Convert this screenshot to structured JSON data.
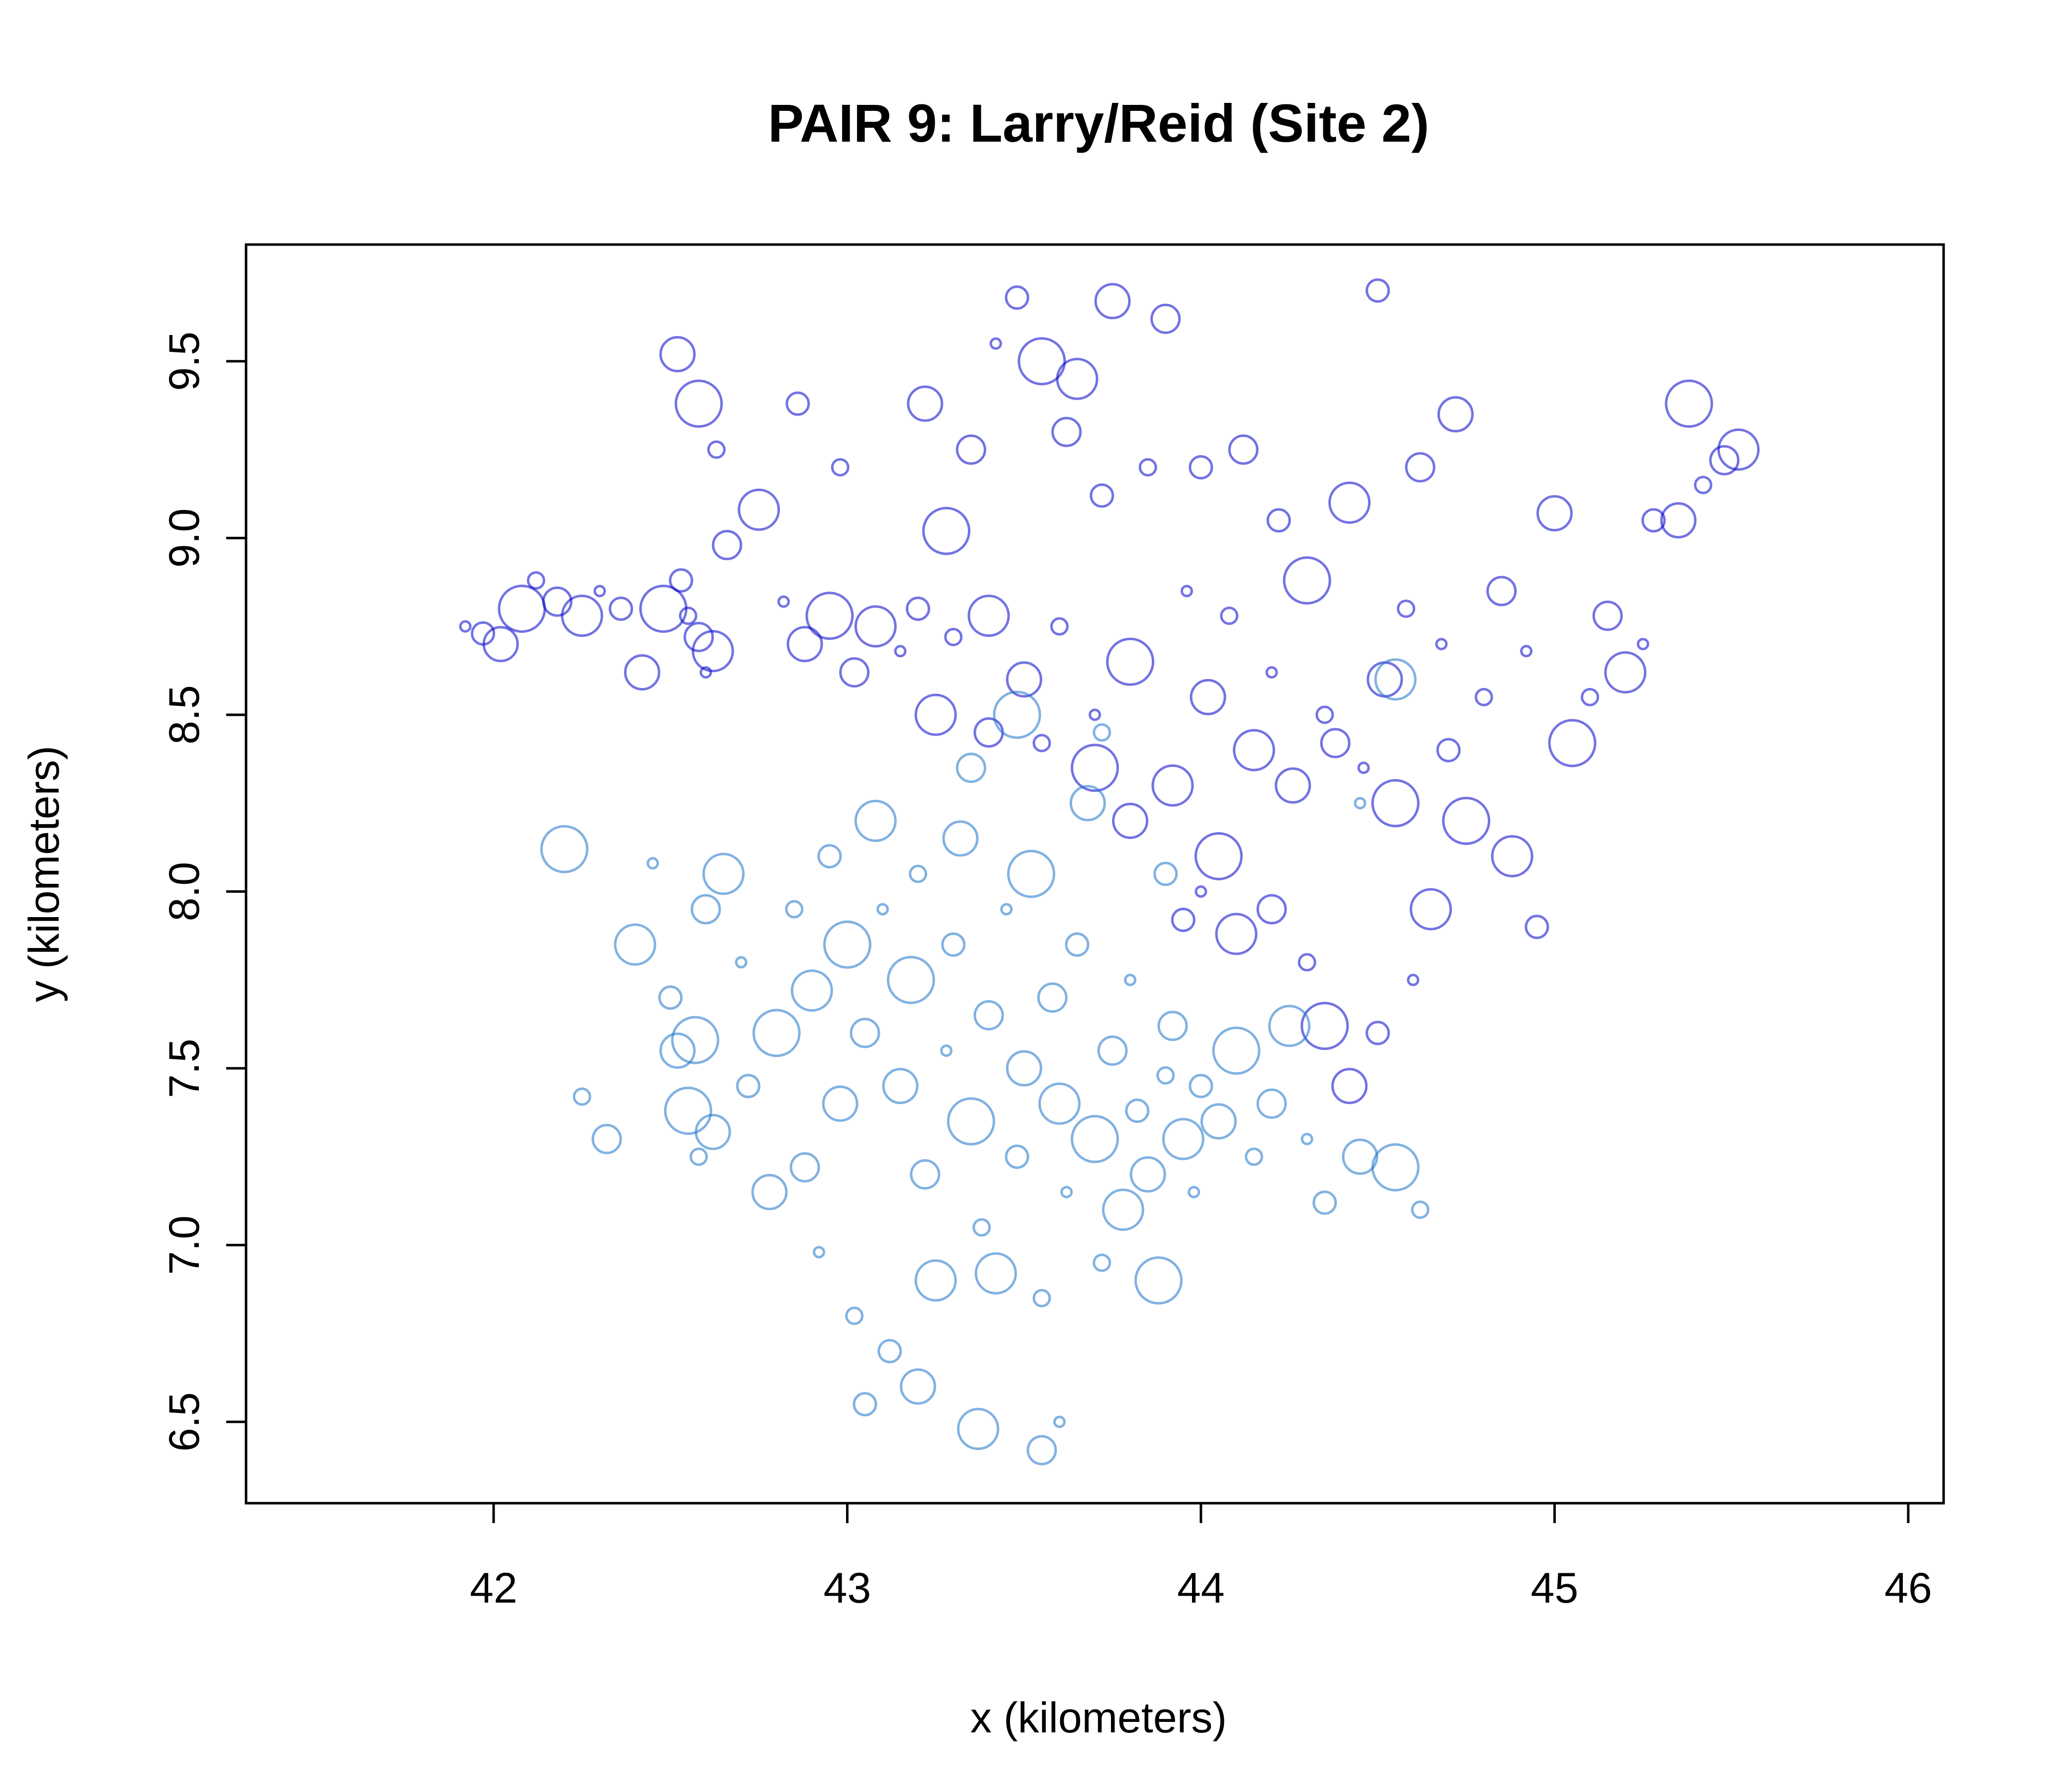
{
  "chart_data": {
    "type": "scatter",
    "title": "PAIR 9: Larry/Reid (Site 2)",
    "xlabel": "x (kilometers)",
    "ylabel": "y (kilometers)",
    "xlim": [
      41.3,
      46.1
    ],
    "ylim": [
      6.27,
      9.83
    ],
    "x_ticks": [
      "42",
      "43",
      "44",
      "45",
      "46"
    ],
    "y_ticks": [
      "6.5",
      "7.0",
      "7.5",
      "8.0",
      "8.5",
      "9.0",
      "9.5"
    ],
    "grid": false,
    "legend": "none",
    "marker": "open circle, size varies, semi-transparent",
    "series": [
      {
        "color": "#0000cc",
        "points": [
          [
            41.92,
            8.75
          ],
          [
            41.97,
            8.73
          ],
          [
            42.02,
            8.7
          ],
          [
            42.08,
            8.8
          ],
          [
            42.12,
            8.88
          ],
          [
            42.18,
            8.82
          ],
          [
            42.25,
            8.78
          ],
          [
            42.3,
            8.85
          ],
          [
            42.36,
            8.8
          ],
          [
            42.42,
            8.62
          ],
          [
            42.48,
            8.8
          ],
          [
            42.55,
            8.78
          ],
          [
            42.58,
            8.72
          ],
          [
            42.62,
            8.68
          ],
          [
            42.6,
            8.62
          ],
          [
            42.53,
            8.88
          ],
          [
            42.52,
            9.52
          ],
          [
            42.58,
            9.38
          ],
          [
            42.63,
            9.25
          ],
          [
            42.66,
            8.98
          ],
          [
            42.75,
            9.08
          ],
          [
            42.82,
            8.82
          ],
          [
            42.86,
            9.38
          ],
          [
            42.88,
            8.7
          ],
          [
            42.95,
            8.78
          ],
          [
            42.98,
            9.2
          ],
          [
            43.02,
            8.62
          ],
          [
            43.08,
            8.75
          ],
          [
            43.15,
            8.68
          ],
          [
            43.2,
            8.8
          ],
          [
            43.22,
            9.38
          ],
          [
            43.28,
            9.02
          ],
          [
            43.3,
            8.72
          ],
          [
            43.35,
            9.25
          ],
          [
            43.4,
            8.78
          ],
          [
            43.42,
            9.55
          ],
          [
            43.48,
            9.68
          ],
          [
            43.5,
            8.6
          ],
          [
            43.55,
            9.5
          ],
          [
            43.6,
            8.75
          ],
          [
            43.62,
            9.3
          ],
          [
            43.65,
            9.45
          ],
          [
            43.7,
            8.5
          ],
          [
            43.72,
            9.12
          ],
          [
            43.75,
            9.67
          ],
          [
            43.8,
            8.65
          ],
          [
            43.85,
            9.2
          ],
          [
            43.9,
            9.62
          ],
          [
            43.92,
            8.3
          ],
          [
            43.96,
            8.85
          ],
          [
            44.0,
            9.2
          ],
          [
            44.02,
            8.55
          ],
          [
            44.05,
            8.1
          ],
          [
            44.08,
            8.78
          ],
          [
            44.12,
            9.25
          ],
          [
            44.15,
            8.4
          ],
          [
            44.2,
            8.62
          ],
          [
            44.22,
            9.05
          ],
          [
            44.26,
            8.3
          ],
          [
            44.3,
            8.88
          ],
          [
            44.35,
            8.5
          ],
          [
            44.38,
            8.42
          ],
          [
            44.42,
            9.1
          ],
          [
            44.46,
            8.35
          ],
          [
            44.5,
            9.7
          ],
          [
            44.52,
            8.6
          ],
          [
            44.55,
            8.25
          ],
          [
            44.58,
            8.8
          ],
          [
            44.62,
            9.2
          ],
          [
            44.65,
            7.95
          ],
          [
            44.68,
            8.7
          ],
          [
            44.7,
            8.4
          ],
          [
            44.72,
            9.35
          ],
          [
            44.75,
            8.2
          ],
          [
            44.8,
            8.55
          ],
          [
            44.85,
            8.85
          ],
          [
            44.88,
            8.1
          ],
          [
            44.92,
            8.68
          ],
          [
            44.95,
            7.9
          ],
          [
            45.0,
            9.07
          ],
          [
            45.05,
            8.42
          ],
          [
            45.1,
            8.55
          ],
          [
            45.15,
            8.78
          ],
          [
            45.2,
            8.62
          ],
          [
            45.25,
            8.7
          ],
          [
            45.28,
            9.05
          ],
          [
            45.35,
            9.05
          ],
          [
            45.38,
            9.38
          ],
          [
            45.42,
            9.15
          ],
          [
            45.48,
            9.22
          ],
          [
            45.52,
            9.25
          ],
          [
            44.6,
            7.75
          ],
          [
            44.5,
            7.6
          ],
          [
            44.42,
            7.45
          ],
          [
            44.35,
            7.62
          ],
          [
            44.3,
            7.8
          ],
          [
            44.2,
            7.95
          ],
          [
            44.1,
            7.88
          ],
          [
            44.0,
            8.0
          ],
          [
            43.95,
            7.92
          ],
          [
            43.8,
            8.2
          ],
          [
            43.7,
            8.35
          ],
          [
            43.55,
            8.42
          ],
          [
            43.4,
            8.45
          ],
          [
            43.25,
            8.5
          ]
        ]
      },
      {
        "color": "#1a73c8",
        "points": [
          [
            42.2,
            8.12
          ],
          [
            42.25,
            7.42
          ],
          [
            42.32,
            7.3
          ],
          [
            42.4,
            7.85
          ],
          [
            42.45,
            8.08
          ],
          [
            42.5,
            7.7
          ],
          [
            42.52,
            7.55
          ],
          [
            42.55,
            7.38
          ],
          [
            42.58,
            7.25
          ],
          [
            42.6,
            7.95
          ],
          [
            42.65,
            8.05
          ],
          [
            42.7,
            7.8
          ],
          [
            42.72,
            7.45
          ],
          [
            42.78,
            7.15
          ],
          [
            42.8,
            7.6
          ],
          [
            42.85,
            7.95
          ],
          [
            42.88,
            7.22
          ],
          [
            42.9,
            7.72
          ],
          [
            42.92,
            6.98
          ],
          [
            42.95,
            8.1
          ],
          [
            42.98,
            7.4
          ],
          [
            43.0,
            7.85
          ],
          [
            43.02,
            6.8
          ],
          [
            43.05,
            7.6
          ],
          [
            43.08,
            8.2
          ],
          [
            43.1,
            7.95
          ],
          [
            43.12,
            6.7
          ],
          [
            43.15,
            7.45
          ],
          [
            43.18,
            7.75
          ],
          [
            43.2,
            8.05
          ],
          [
            43.22,
            7.2
          ],
          [
            43.25,
            6.9
          ],
          [
            43.28,
            7.55
          ],
          [
            43.3,
            7.85
          ],
          [
            43.32,
            8.15
          ],
          [
            43.35,
            7.35
          ],
          [
            43.38,
            7.05
          ],
          [
            43.4,
            7.65
          ],
          [
            43.42,
            6.92
          ],
          [
            43.45,
            7.95
          ],
          [
            43.48,
            7.25
          ],
          [
            43.5,
            7.5
          ],
          [
            43.52,
            8.05
          ],
          [
            43.55,
            6.85
          ],
          [
            43.58,
            7.7
          ],
          [
            43.6,
            7.4
          ],
          [
            43.62,
            7.15
          ],
          [
            43.65,
            7.85
          ],
          [
            43.68,
            8.25
          ],
          [
            43.7,
            7.3
          ],
          [
            43.72,
            6.95
          ],
          [
            43.75,
            7.55
          ],
          [
            43.78,
            7.1
          ],
          [
            43.8,
            7.75
          ],
          [
            43.82,
            7.38
          ],
          [
            43.85,
            7.2
          ],
          [
            43.88,
            6.9
          ],
          [
            43.9,
            7.48
          ],
          [
            43.92,
            7.62
          ],
          [
            43.95,
            7.3
          ],
          [
            43.98,
            7.15
          ],
          [
            44.0,
            7.45
          ],
          [
            44.05,
            7.35
          ],
          [
            44.1,
            7.55
          ],
          [
            44.15,
            7.25
          ],
          [
            44.2,
            7.4
          ],
          [
            44.25,
            7.62
          ],
          [
            44.3,
            7.3
          ],
          [
            44.35,
            7.12
          ],
          [
            44.45,
            7.25
          ],
          [
            44.55,
            7.22
          ],
          [
            44.62,
            7.1
          ],
          [
            43.55,
            6.42
          ],
          [
            43.37,
            6.48
          ],
          [
            43.6,
            6.5
          ],
          [
            43.05,
            6.55
          ],
          [
            43.2,
            6.6
          ],
          [
            43.48,
            8.5
          ],
          [
            43.72,
            8.45
          ],
          [
            43.35,
            8.35
          ],
          [
            44.55,
            8.6
          ],
          [
            44.45,
            8.25
          ],
          [
            43.9,
            8.05
          ],
          [
            42.62,
            7.32
          ],
          [
            42.57,
            7.58
          ]
        ]
      }
    ]
  }
}
